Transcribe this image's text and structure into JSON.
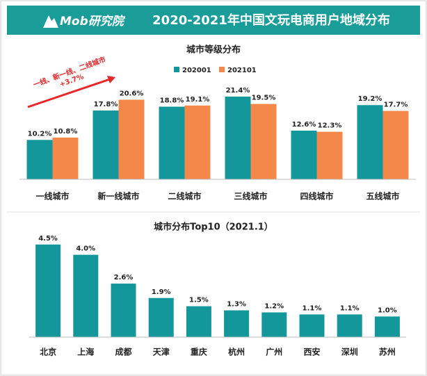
{
  "header": {
    "logo": "Mob研究院",
    "title": "2020-2021年中国文玩电商用户地域分布"
  },
  "chart_data": [
    {
      "type": "bar",
      "title": "城市等级分布",
      "categories": [
        "一线城市",
        "新一线城市",
        "二线城市",
        "三线城市",
        "四线城市",
        "五线城市"
      ],
      "series": [
        {
          "name": "202001",
          "color": "#14979a",
          "values": [
            10.2,
            17.8,
            18.8,
            21.4,
            12.6,
            19.2
          ],
          "value_labels": [
            "10.2%",
            "17.8%",
            "18.8%",
            "21.4%",
            "12.6%",
            "19.2%"
          ]
        },
        {
          "name": "202101",
          "color": "#f4884b",
          "values": [
            10.8,
            20.6,
            19.1,
            19.5,
            12.3,
            17.7
          ],
          "value_labels": [
            "10.8%",
            "20.6%",
            "19.1%",
            "19.5%",
            "12.3%",
            "17.7%"
          ]
        }
      ],
      "annotations": [
        "一线、新一线、二线城市",
        "+3.7%"
      ],
      "ylim": [
        0,
        25
      ],
      "legend": "top"
    },
    {
      "type": "bar",
      "title": "城市分布Top10（2021.1）",
      "categories": [
        "北京",
        "上海",
        "成都",
        "天津",
        "重庆",
        "杭州",
        "广州",
        "西安",
        "深圳",
        "苏州"
      ],
      "color": "#14979a",
      "values": [
        4.5,
        4.0,
        2.6,
        1.9,
        1.5,
        1.3,
        1.2,
        1.1,
        1.1,
        1.0
      ],
      "value_labels": [
        "4.5%",
        "4.0%",
        "2.6%",
        "1.9%",
        "1.5%",
        "1.3%",
        "1.2%",
        "1.1%",
        "1.1%",
        "1.0%"
      ],
      "ylim": [
        0,
        5
      ]
    }
  ]
}
